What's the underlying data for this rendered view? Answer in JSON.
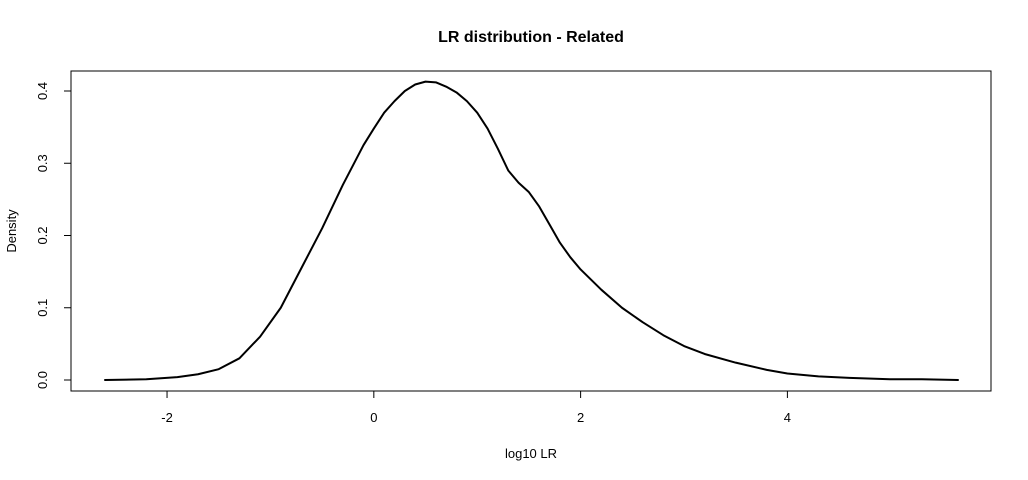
{
  "chart_data": {
    "type": "line",
    "title": "LR distribution - Related",
    "xlabel": "log10 LR",
    "ylabel": "Density",
    "xlim": [
      -2.6,
      5.65
    ],
    "ylim": [
      0.0,
      0.42
    ],
    "x_ticks": [
      -2,
      0,
      2,
      4
    ],
    "y_ticks": [
      0.0,
      0.1,
      0.2,
      0.3,
      0.4
    ],
    "x_tick_labels": [
      "-2",
      "0",
      "2",
      "4"
    ],
    "y_tick_labels": [
      "0.0",
      "0.1",
      "0.2",
      "0.3",
      "0.4"
    ],
    "grid": false,
    "series": [
      {
        "line_color": "#000000",
        "x": [
          -2.6,
          -2.2,
          -1.9,
          -1.7,
          -1.5,
          -1.3,
          -1.1,
          -0.9,
          -0.7,
          -0.5,
          -0.3,
          -0.1,
          0.0,
          0.1,
          0.2,
          0.3,
          0.4,
          0.5,
          0.6,
          0.7,
          0.8,
          0.9,
          1.0,
          1.1,
          1.2,
          1.3,
          1.4,
          1.5,
          1.6,
          1.7,
          1.8,
          1.9,
          2.0,
          2.2,
          2.4,
          2.6,
          2.8,
          3.0,
          3.2,
          3.5,
          3.8,
          4.0,
          4.3,
          4.6,
          5.0,
          5.3,
          5.65
        ],
        "y": [
          0.0,
          0.001,
          0.004,
          0.008,
          0.015,
          0.03,
          0.06,
          0.1,
          0.155,
          0.21,
          0.27,
          0.325,
          0.348,
          0.37,
          0.386,
          0.4,
          0.409,
          0.413,
          0.412,
          0.406,
          0.398,
          0.386,
          0.37,
          0.348,
          0.32,
          0.29,
          0.273,
          0.26,
          0.24,
          0.215,
          0.19,
          0.17,
          0.153,
          0.125,
          0.1,
          0.08,
          0.062,
          0.047,
          0.036,
          0.024,
          0.014,
          0.009,
          0.005,
          0.003,
          0.001,
          0.001,
          0.0
        ]
      }
    ]
  }
}
